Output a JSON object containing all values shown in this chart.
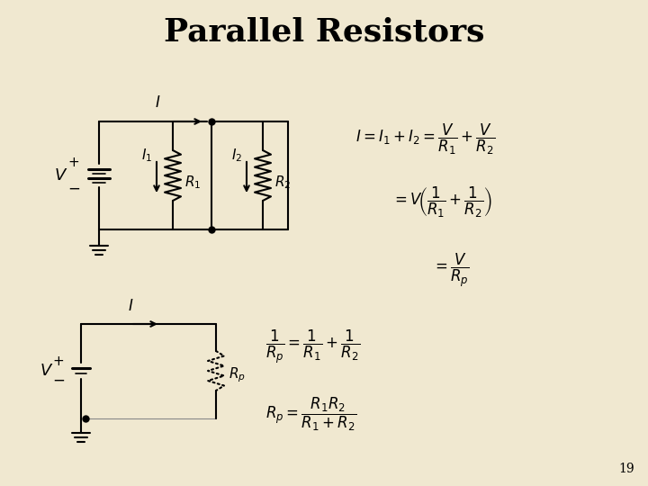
{
  "title": "Parallel Resistors",
  "background_color": "#f0e8d0",
  "title_fontsize": 26,
  "title_fontweight": "bold",
  "page_number": "19",
  "lw": 1.5
}
